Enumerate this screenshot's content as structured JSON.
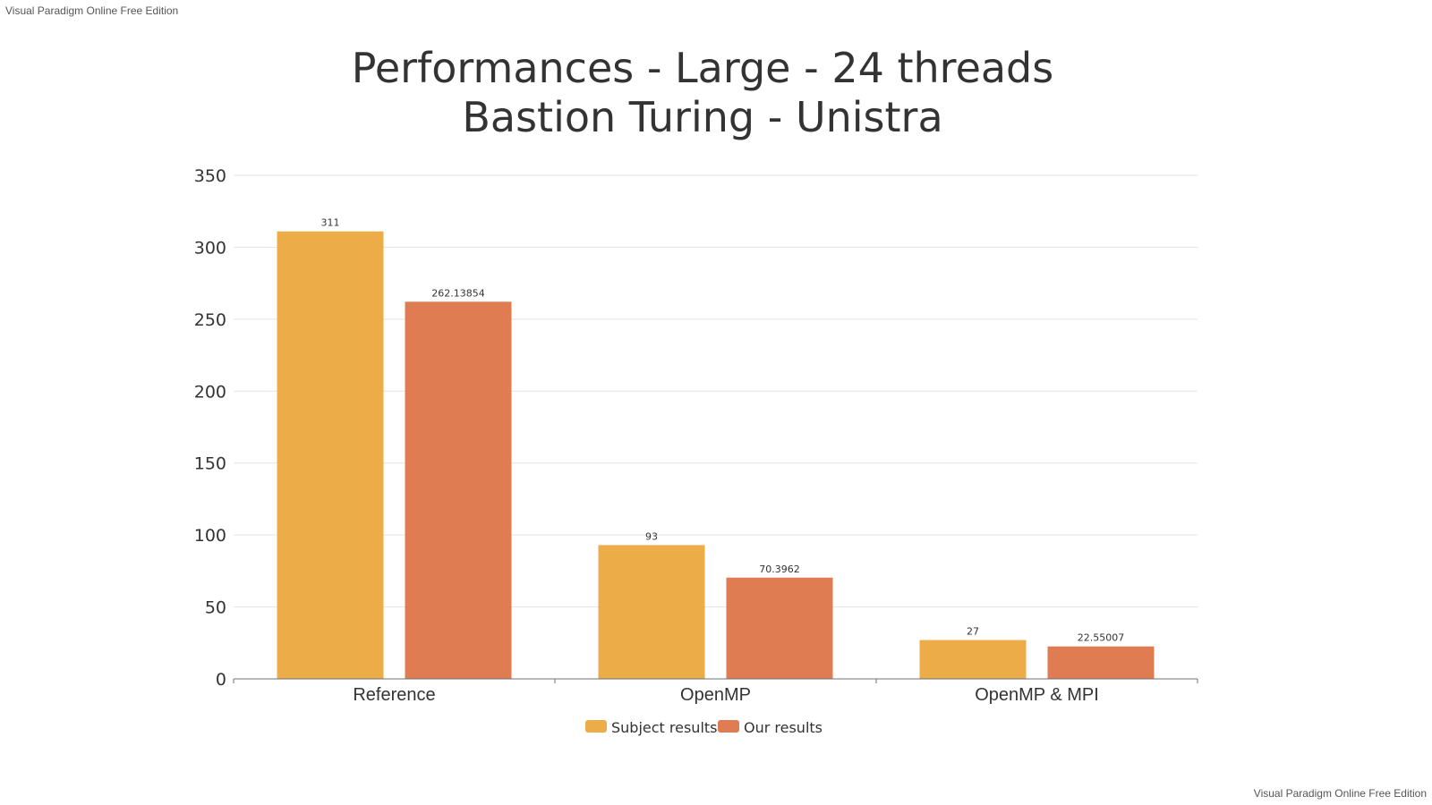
{
  "watermark": {
    "top": "Visual Paradigm Online Free Edition",
    "bottom": "Visual Paradigm Online Free Edition"
  },
  "chart_data": {
    "type": "bar",
    "title": [
      "Performances - Large - 24 threads",
      "Bastion Turing - Unistra"
    ],
    "xlabel": "",
    "ylabel": "",
    "categories": [
      "Reference",
      "OpenMP",
      "OpenMP & MPI"
    ],
    "series": [
      {
        "name": "Subject results",
        "color": "#ECAC48",
        "values": [
          311,
          93,
          27
        ],
        "labels": [
          "311",
          "93",
          "27"
        ]
      },
      {
        "name": "Our results",
        "color": "#E07C52",
        "values": [
          262.13854,
          70.3962,
          22.55007
        ],
        "labels": [
          "262.13854",
          "70.3962",
          "22.55007"
        ]
      }
    ],
    "ylim": [
      0,
      350
    ],
    "yticks": [
      0,
      50,
      100,
      150,
      200,
      250,
      300,
      350
    ],
    "grid": true,
    "legend": "bottom"
  }
}
